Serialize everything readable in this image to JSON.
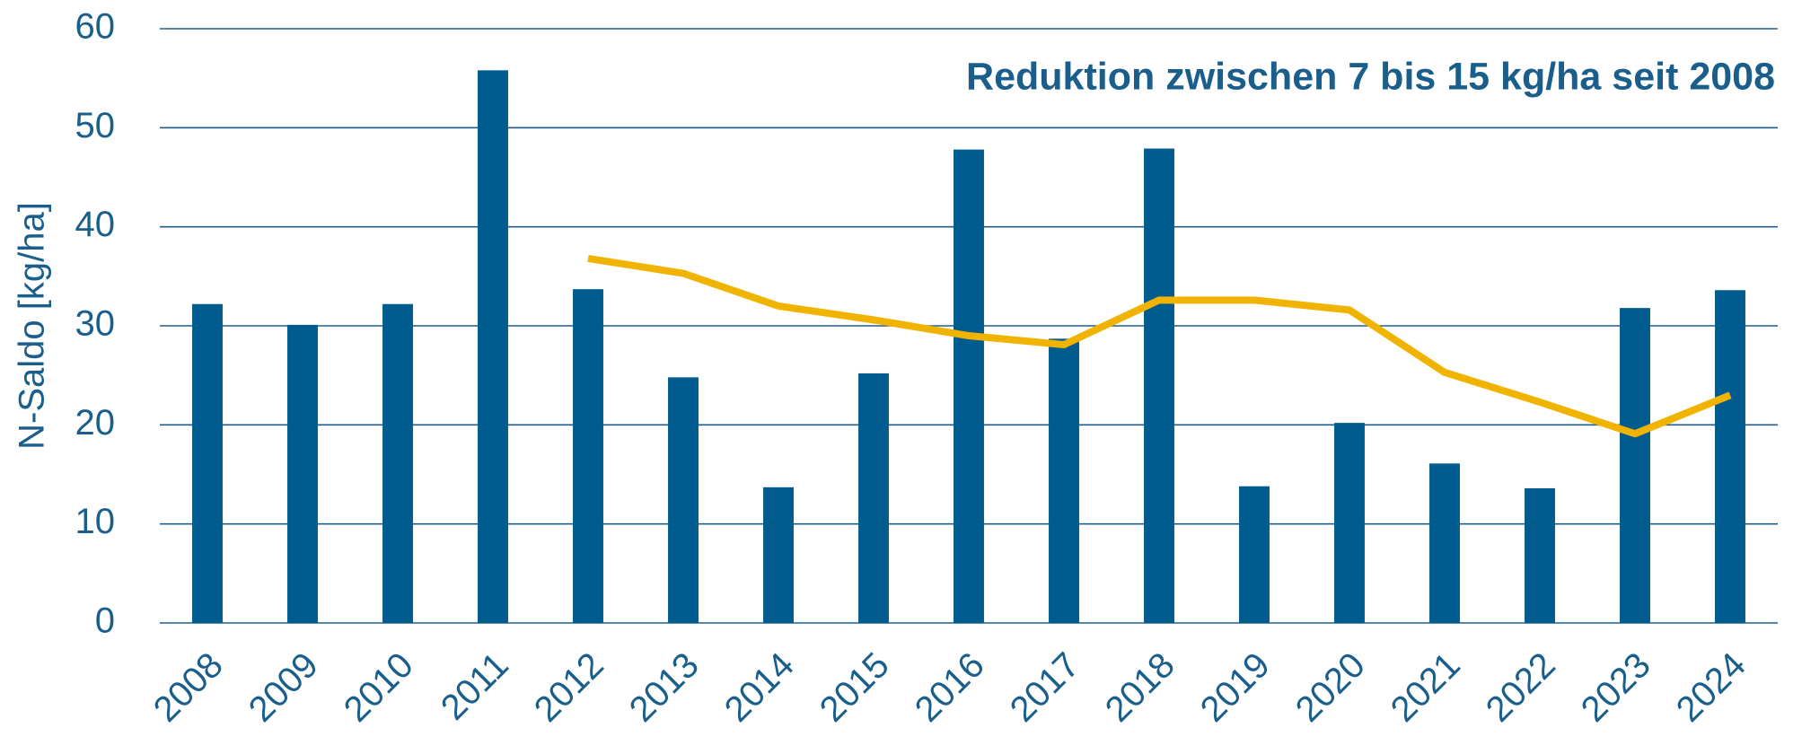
{
  "chart_data": {
    "type": "bar",
    "annotation": "Reduktion zwischen 7 bis 15 kg/ha seit 2008",
    "y_label": "N-Saldo [kg/ha]",
    "categories": [
      "2008",
      "2009",
      "2010",
      "2011",
      "2012",
      "2013",
      "2014",
      "2015",
      "2016",
      "2017",
      "2018",
      "2019",
      "2020",
      "2021",
      "2022",
      "2023",
      "2024"
    ],
    "series": [
      {
        "type": "bar",
        "color": "#005b8f",
        "values": [
          32.2,
          30.1,
          32.2,
          55.8,
          33.7,
          24.8,
          13.7,
          25.2,
          47.8,
          28.7,
          47.9,
          13.8,
          20.2,
          16.1,
          13.6,
          31.8,
          33.6
        ]
      },
      {
        "type": "line",
        "color": "#f0b400",
        "values": [
          null,
          null,
          null,
          null,
          36.8,
          35.3,
          32.0,
          30.6,
          29.0,
          28.1,
          32.6,
          32.6,
          31.6,
          25.3,
          22.3,
          19.1,
          23.0
        ]
      }
    ],
    "ylim": [
      0,
      60
    ],
    "yticks": [
      0,
      10,
      20,
      30,
      40,
      50,
      60
    ],
    "grid": true
  }
}
